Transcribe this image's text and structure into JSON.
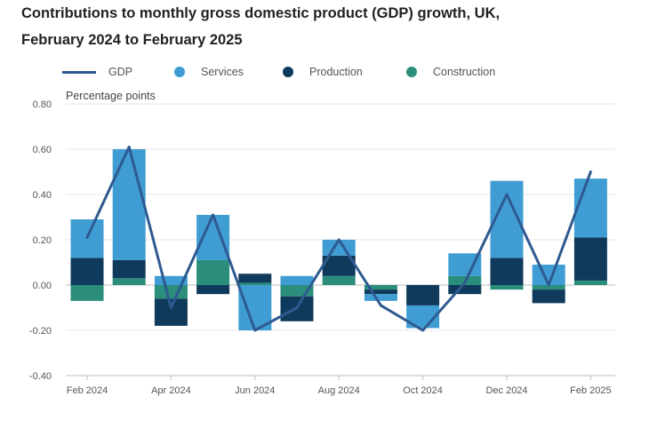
{
  "chart_data": {
    "type": "bar",
    "title_line1": "Contributions to monthly gross domestic product (GDP) growth, UK,",
    "title_line2": "February 2024 to February 2025",
    "ylabel": "Percentage points",
    "ylim": [
      -0.4,
      0.8
    ],
    "yticks": [
      "0.80",
      "0.60",
      "0.40",
      "0.20",
      "0.00",
      "-0.20",
      "-0.40"
    ],
    "ytick_values": [
      0.8,
      0.6,
      0.4,
      0.2,
      0.0,
      -0.2,
      -0.4
    ],
    "categories": [
      "Feb 2024",
      "Mar 2024",
      "Apr 2024",
      "May 2024",
      "Jun 2024",
      "Jul 2024",
      "Aug 2024",
      "Sep 2024",
      "Oct 2024",
      "Nov 2024",
      "Dec 2024",
      "Jan 2025",
      "Feb 2025"
    ],
    "xtick_labels": [
      "Feb 2024",
      "",
      "Apr 2024",
      "",
      "Jun 2024",
      "",
      "Aug 2024",
      "",
      "Oct 2024",
      "",
      "Dec 2024",
      "",
      "Feb 2025"
    ],
    "series": [
      {
        "name": "GDP",
        "kind": "line",
        "values": [
          0.21,
          0.61,
          -0.1,
          0.31,
          -0.2,
          -0.1,
          0.2,
          -0.09,
          -0.2,
          0.01,
          0.4,
          0.0,
          0.5
        ]
      },
      {
        "name": "Services",
        "kind": "bar",
        "values": [
          0.17,
          0.49,
          0.04,
          0.2,
          -0.2,
          0.04,
          0.07,
          -0.03,
          -0.1,
          0.1,
          0.34,
          0.09,
          0.26
        ]
      },
      {
        "name": "Production",
        "kind": "bar",
        "values": [
          0.12,
          0.08,
          -0.12,
          -0.04,
          0.04,
          -0.11,
          0.09,
          -0.02,
          -0.09,
          -0.04,
          0.12,
          -0.06,
          0.19
        ]
      },
      {
        "name": "Construction",
        "kind": "bar",
        "values": [
          -0.07,
          0.03,
          -0.06,
          0.11,
          0.01,
          -0.05,
          0.04,
          -0.02,
          0.0,
          0.04,
          -0.02,
          -0.02,
          0.02
        ]
      }
    ],
    "legend": [
      "GDP",
      "Services",
      "Production",
      "Construction"
    ],
    "colors": {
      "GDP": "#2e5a91",
      "Services": "#3f9dd3",
      "Production": "#0f3a5b",
      "Construction": "#2b8d7b"
    },
    "grid": true
  }
}
